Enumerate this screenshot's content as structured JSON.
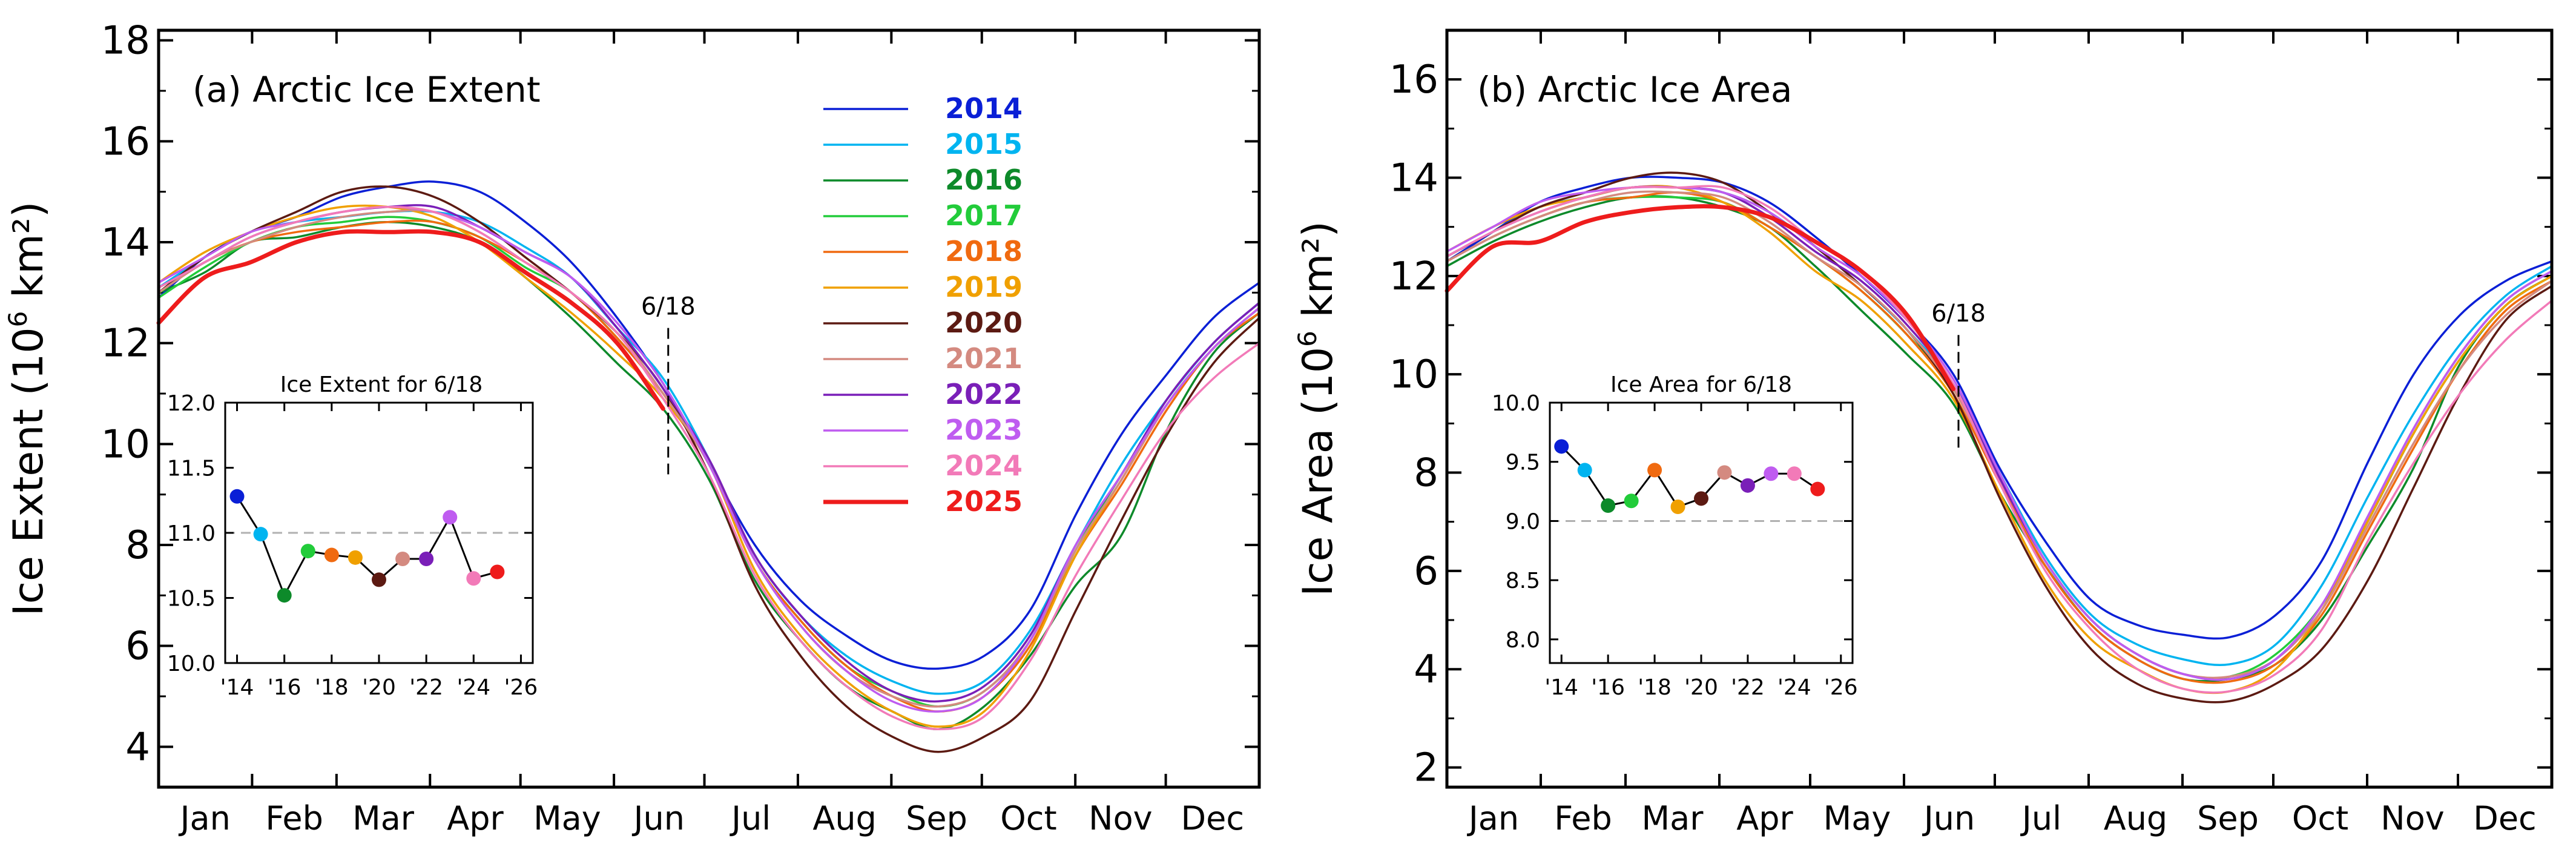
{
  "chart_data": [
    {
      "id": "a",
      "type": "line",
      "title": "(a) Arctic Ice Extent",
      "ylabel_main": "Ice Extent (10",
      "ylabel_exp": "6",
      "ylabel_tail": " km²)",
      "ylim": [
        3.2,
        18.2
      ],
      "yticks": [
        4,
        6,
        8,
        10,
        12,
        14,
        16,
        18
      ],
      "xlim": [
        0,
        365
      ],
      "month_labels": [
        "Jan",
        "Feb",
        "Mar",
        "Apr",
        "May",
        "Jun",
        "Jul",
        "Aug",
        "Sep",
        "Oct",
        "Nov",
        "Dec"
      ],
      "marker_day": 169,
      "marker_label": "6/18",
      "marker_range": [
        9.4,
        12.3
      ],
      "series": [
        {
          "name": "2014",
          "color": "#0a1fd6",
          "width": 3.5,
          "values": [
            12.9,
            13.7,
            14.2,
            14.5,
            14.9,
            15.1,
            15.2,
            15.0,
            14.4,
            13.6,
            12.5,
            11.2,
            9.6,
            8.0,
            6.9,
            6.2,
            5.7,
            5.55,
            5.8,
            6.7,
            8.6,
            10.2,
            11.4,
            12.5,
            13.2
          ]
        },
        {
          "name": "2015",
          "color": "#00b4f0",
          "width": 3.5,
          "values": [
            13.1,
            13.7,
            14.2,
            14.4,
            14.5,
            14.6,
            14.6,
            14.4,
            13.9,
            13.3,
            12.3,
            11.3,
            9.7,
            7.8,
            6.6,
            5.8,
            5.3,
            5.05,
            5.3,
            6.3,
            8.0,
            9.6,
            10.9,
            12.0,
            12.8
          ]
        },
        {
          "name": "2016",
          "color": "#0d8a2a",
          "width": 3.5,
          "values": [
            13.0,
            13.4,
            14.0,
            14.1,
            14.3,
            14.4,
            14.3,
            14.0,
            13.3,
            12.5,
            11.6,
            10.7,
            9.3,
            7.3,
            6.1,
            5.2,
            4.7,
            4.35,
            4.8,
            5.8,
            7.2,
            8.2,
            10.3,
            11.8,
            12.6
          ]
        },
        {
          "name": "2017",
          "color": "#22cc3a",
          "width": 3.5,
          "values": [
            12.9,
            13.5,
            14.0,
            14.3,
            14.4,
            14.5,
            14.4,
            14.1,
            13.5,
            13.0,
            12.1,
            11.0,
            9.6,
            7.7,
            6.5,
            5.6,
            5.1,
            4.8,
            5.1,
            6.1,
            7.9,
            9.4,
            10.8,
            11.9,
            12.7
          ]
        },
        {
          "name": "2018",
          "color": "#f06a10",
          "width": 3.5,
          "values": [
            13.0,
            13.6,
            14.0,
            14.2,
            14.3,
            14.4,
            14.4,
            14.1,
            13.6,
            13.0,
            12.1,
            11.0,
            9.6,
            7.7,
            6.5,
            5.6,
            5.0,
            4.7,
            5.0,
            6.0,
            7.8,
            9.2,
            10.7,
            11.9,
            12.6
          ]
        },
        {
          "name": "2019",
          "color": "#f0a000",
          "width": 3.5,
          "values": [
            13.2,
            13.8,
            14.2,
            14.5,
            14.7,
            14.7,
            14.5,
            14.0,
            13.3,
            12.6,
            11.8,
            10.9,
            9.6,
            7.5,
            6.2,
            5.3,
            4.7,
            4.4,
            4.7,
            5.9,
            7.8,
            9.3,
            10.8,
            11.9,
            12.7
          ]
        },
        {
          "name": "2020",
          "color": "#5c1a12",
          "width": 3.5,
          "values": [
            13.0,
            13.7,
            14.2,
            14.6,
            15.0,
            15.1,
            14.9,
            14.4,
            13.7,
            13.0,
            12.2,
            11.1,
            9.4,
            7.2,
            5.8,
            4.8,
            4.2,
            3.9,
            4.2,
            4.9,
            6.7,
            8.5,
            10.2,
            11.6,
            12.5
          ]
        },
        {
          "name": "2021",
          "color": "#d48a80",
          "width": 3.5,
          "values": [
            13.0,
            13.6,
            14.0,
            14.3,
            14.5,
            14.6,
            14.6,
            14.2,
            13.6,
            13.0,
            12.2,
            11.0,
            9.6,
            7.7,
            6.4,
            5.5,
            5.0,
            4.8,
            5.1,
            6.1,
            7.9,
            9.3,
            10.8,
            11.9,
            12.7
          ]
        },
        {
          "name": "2022",
          "color": "#7a1fb8",
          "width": 3.5,
          "values": [
            13.1,
            13.6,
            14.1,
            14.4,
            14.6,
            14.7,
            14.7,
            14.3,
            13.8,
            13.3,
            12.3,
            11.1,
            9.7,
            7.8,
            6.6,
            5.7,
            5.1,
            4.9,
            5.2,
            6.2,
            8.0,
            9.4,
            10.9,
            12.0,
            12.8
          ]
        },
        {
          "name": "2023",
          "color": "#bf5cf0",
          "width": 3.5,
          "values": [
            13.2,
            13.7,
            14.2,
            14.4,
            14.6,
            14.7,
            14.6,
            14.3,
            13.8,
            13.3,
            12.4,
            11.2,
            9.6,
            7.7,
            6.4,
            5.5,
            4.9,
            4.7,
            5.0,
            6.1,
            8.0,
            9.4,
            10.8,
            11.9,
            12.7
          ]
        },
        {
          "name": "2024",
          "color": "#f27ab8",
          "width": 3.5,
          "values": [
            13.1,
            13.6,
            14.1,
            14.4,
            14.6,
            14.7,
            14.6,
            14.2,
            13.6,
            13.0,
            12.2,
            10.9,
            9.4,
            7.4,
            6.1,
            5.2,
            4.6,
            4.35,
            4.6,
            5.7,
            7.4,
            8.9,
            10.3,
            11.3,
            12.0
          ]
        },
        {
          "name": "2025",
          "color": "#ee1c1c",
          "width": 7,
          "values": [
            12.4,
            13.3,
            13.6,
            14.0,
            14.2,
            14.2,
            14.2,
            14.0,
            13.4,
            12.8,
            12.0,
            10.7
          ]
        }
      ],
      "inset": {
        "title": "Ice Extent for 6/18",
        "ylim": [
          10.0,
          12.0
        ],
        "yticks": [
          "10.0",
          "10.5",
          "11.0",
          "11.5",
          "12.0"
        ],
        "ytick_values": [
          10.0,
          10.5,
          11.0,
          11.5,
          12.0
        ],
        "xlim": [
          2013.5,
          2026.5
        ],
        "xtick_values": [
          2014,
          2016,
          2018,
          2020,
          2022,
          2024,
          2026
        ],
        "xticks": [
          "'14",
          "'16",
          "'18",
          "'20",
          "'22",
          "'24",
          "'26"
        ],
        "ref_line": 11.0,
        "points": [
          {
            "year": 2014,
            "value": 11.28,
            "color": "#0a1fd6"
          },
          {
            "year": 2015,
            "value": 10.99,
            "color": "#00b4f0"
          },
          {
            "year": 2016,
            "value": 10.52,
            "color": "#0d8a2a"
          },
          {
            "year": 2017,
            "value": 10.86,
            "color": "#22cc3a"
          },
          {
            "year": 2018,
            "value": 10.83,
            "color": "#f06a10"
          },
          {
            "year": 2019,
            "value": 10.81,
            "color": "#f0a000"
          },
          {
            "year": 2020,
            "value": 10.64,
            "color": "#5c1a12"
          },
          {
            "year": 2021,
            "value": 10.8,
            "color": "#d48a80"
          },
          {
            "year": 2022,
            "value": 10.8,
            "color": "#7a1fb8"
          },
          {
            "year": 2023,
            "value": 11.12,
            "color": "#bf5cf0"
          },
          {
            "year": 2024,
            "value": 10.65,
            "color": "#f27ab8"
          },
          {
            "year": 2025,
            "value": 10.7,
            "color": "#ee1c1c"
          }
        ]
      }
    },
    {
      "id": "b",
      "type": "line",
      "title": "(b) Arctic Ice Area",
      "ylabel_main": "Ice Area (10",
      "ylabel_exp": "6",
      "ylabel_tail": " km²)",
      "ylim": [
        1.6,
        17.0
      ],
      "yticks": [
        2,
        4,
        6,
        8,
        10,
        12,
        14,
        16
      ],
      "xlim": [
        0,
        365
      ],
      "month_labels": [
        "Jan",
        "Feb",
        "Mar",
        "Apr",
        "May",
        "Jun",
        "Jul",
        "Aug",
        "Sep",
        "Oct",
        "Nov",
        "Dec"
      ],
      "marker_day": 169,
      "marker_label": "6/18",
      "marker_range": [
        8.4,
        10.8
      ],
      "series": [
        {
          "name": "2014",
          "color": "#0a1fd6",
          "width": 3.5,
          "values": [
            12.3,
            12.9,
            13.5,
            13.8,
            14.0,
            14.0,
            13.9,
            13.5,
            12.8,
            12.0,
            11.1,
            10.0,
            8.1,
            6.6,
            5.4,
            4.9,
            4.7,
            4.65,
            5.1,
            6.2,
            8.2,
            10.0,
            11.2,
            11.9,
            12.3
          ]
        },
        {
          "name": "2015",
          "color": "#00b4f0",
          "width": 3.5,
          "values": [
            12.4,
            12.9,
            13.4,
            13.6,
            13.8,
            13.8,
            13.7,
            13.3,
            12.6,
            11.8,
            10.9,
            9.8,
            8.0,
            6.3,
            5.1,
            4.5,
            4.2,
            4.1,
            4.5,
            5.7,
            7.5,
            9.2,
            10.6,
            11.6,
            12.2
          ]
        },
        {
          "name": "2016",
          "color": "#0d8a2a",
          "width": 3.5,
          "values": [
            12.2,
            12.7,
            13.1,
            13.4,
            13.6,
            13.6,
            13.4,
            13.0,
            12.2,
            11.3,
            10.4,
            9.4,
            7.6,
            6.1,
            4.9,
            4.2,
            3.8,
            3.8,
            4.1,
            5.0,
            6.5,
            8.1,
            10.2,
            11.4,
            12.0
          ]
        },
        {
          "name": "2017",
          "color": "#22cc3a",
          "width": 3.5,
          "values": [
            12.3,
            12.8,
            13.2,
            13.5,
            13.6,
            13.6,
            13.5,
            13.0,
            12.4,
            11.7,
            10.8,
            9.7,
            7.9,
            6.2,
            5.0,
            4.3,
            3.9,
            3.85,
            4.3,
            5.3,
            7.0,
            8.8,
            10.3,
            11.4,
            12.0
          ]
        },
        {
          "name": "2018",
          "color": "#f06a10",
          "width": 3.5,
          "values": [
            12.3,
            12.8,
            13.2,
            13.5,
            13.6,
            13.7,
            13.5,
            13.0,
            12.4,
            11.7,
            10.8,
            9.6,
            7.8,
            6.1,
            4.9,
            4.2,
            3.8,
            3.75,
            4.1,
            5.1,
            6.8,
            8.5,
            10.1,
            11.3,
            11.9
          ]
        },
        {
          "name": "2019",
          "color": "#f0a000",
          "width": 3.5,
          "values": [
            12.5,
            13.0,
            13.4,
            13.6,
            13.8,
            13.8,
            13.5,
            12.9,
            12.1,
            11.5,
            10.6,
            9.5,
            7.6,
            5.8,
            4.6,
            4.0,
            3.6,
            3.55,
            4.0,
            5.2,
            7.0,
            8.8,
            10.3,
            11.4,
            12.0
          ]
        },
        {
          "name": "2020",
          "color": "#5c1a12",
          "width": 3.5,
          "values": [
            12.4,
            12.9,
            13.4,
            13.7,
            14.0,
            14.1,
            13.9,
            13.3,
            12.6,
            11.8,
            10.9,
            9.6,
            7.5,
            5.7,
            4.4,
            3.7,
            3.4,
            3.35,
            3.7,
            4.4,
            5.8,
            7.7,
            9.6,
            11.1,
            11.8
          ]
        },
        {
          "name": "2021",
          "color": "#d48a80",
          "width": 3.5,
          "values": [
            12.3,
            12.8,
            13.2,
            13.5,
            13.7,
            13.7,
            13.6,
            13.1,
            12.4,
            11.8,
            10.9,
            9.7,
            7.9,
            6.2,
            5.0,
            4.3,
            3.9,
            3.85,
            4.2,
            5.2,
            6.9,
            8.6,
            10.1,
            11.2,
            11.9
          ]
        },
        {
          "name": "2022",
          "color": "#7a1fb8",
          "width": 3.5,
          "values": [
            12.4,
            12.9,
            13.3,
            13.6,
            13.8,
            13.8,
            13.7,
            13.2,
            12.5,
            11.9,
            11.0,
            9.8,
            7.9,
            6.2,
            5.0,
            4.3,
            3.9,
            3.8,
            4.2,
            5.3,
            7.1,
            8.9,
            10.4,
            11.5,
            12.1
          ]
        },
        {
          "name": "2023",
          "color": "#bf5cf0",
          "width": 3.5,
          "values": [
            12.5,
            13.0,
            13.5,
            13.7,
            13.8,
            13.8,
            13.7,
            13.3,
            12.6,
            12.0,
            11.1,
            9.9,
            8.0,
            6.2,
            5.0,
            4.3,
            3.9,
            3.8,
            4.2,
            5.3,
            7.1,
            8.9,
            10.4,
            11.5,
            12.1
          ]
        },
        {
          "name": "2024",
          "color": "#f27ab8",
          "width": 3.5,
          "values": [
            12.4,
            12.9,
            13.3,
            13.6,
            13.8,
            13.8,
            13.8,
            13.4,
            12.7,
            12.1,
            11.1,
            9.8,
            7.8,
            6.0,
            4.8,
            4.0,
            3.6,
            3.55,
            3.9,
            4.8,
            6.6,
            8.2,
            9.6,
            10.7,
            11.5
          ]
        },
        {
          "name": "2025",
          "color": "#ee1c1c",
          "width": 7,
          "values": [
            11.7,
            12.6,
            12.7,
            13.1,
            13.3,
            13.4,
            13.4,
            13.2,
            12.7,
            12.1,
            11.2,
            9.7
          ]
        }
      ],
      "inset": {
        "title": "Ice Area for 6/18",
        "ylim": [
          7.8,
          10.0
        ],
        "yticks": [
          "8.0",
          "8.5",
          "9.0",
          "9.5",
          "10.0"
        ],
        "ytick_values": [
          8.0,
          8.5,
          9.0,
          9.5,
          10.0
        ],
        "xlim": [
          2013.5,
          2026.5
        ],
        "xtick_values": [
          2014,
          2016,
          2018,
          2020,
          2022,
          2024,
          2026
        ],
        "xticks": [
          "'14",
          "'16",
          "'18",
          "'20",
          "'22",
          "'24",
          "'26"
        ],
        "ref_line": 9.0,
        "points": [
          {
            "year": 2014,
            "value": 9.63,
            "color": "#0a1fd6"
          },
          {
            "year": 2015,
            "value": 9.43,
            "color": "#00b4f0"
          },
          {
            "year": 2016,
            "value": 9.13,
            "color": "#0d8a2a"
          },
          {
            "year": 2017,
            "value": 9.17,
            "color": "#22cc3a"
          },
          {
            "year": 2018,
            "value": 9.43,
            "color": "#f06a10"
          },
          {
            "year": 2019,
            "value": 9.12,
            "color": "#f0a000"
          },
          {
            "year": 2020,
            "value": 9.19,
            "color": "#5c1a12"
          },
          {
            "year": 2021,
            "value": 9.41,
            "color": "#d48a80"
          },
          {
            "year": 2022,
            "value": 9.3,
            "color": "#7a1fb8"
          },
          {
            "year": 2023,
            "value": 9.4,
            "color": "#bf5cf0"
          },
          {
            "year": 2024,
            "value": 9.4,
            "color": "#f27ab8"
          },
          {
            "year": 2025,
            "value": 9.27,
            "color": "#ee1c1c"
          }
        ]
      }
    }
  ]
}
